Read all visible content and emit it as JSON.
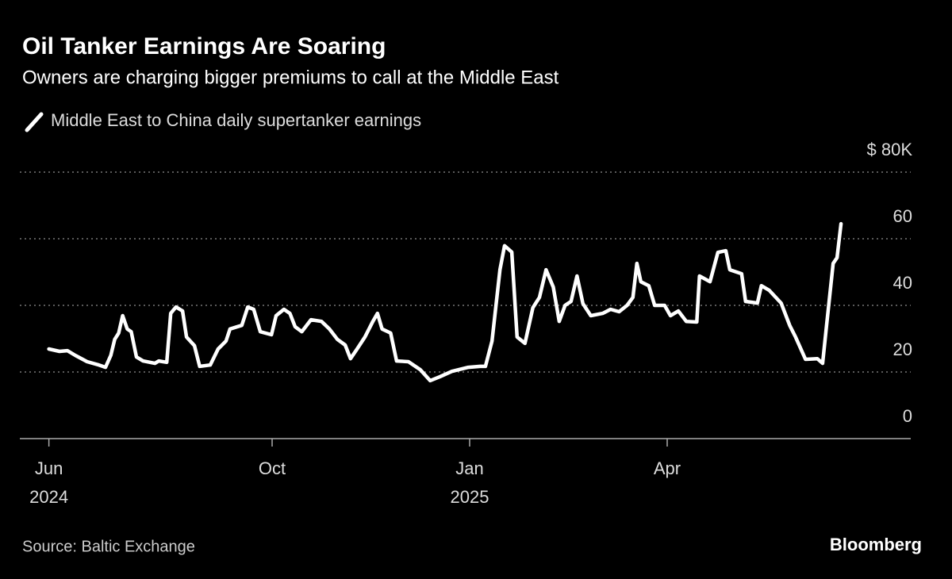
{
  "chart_data": {
    "type": "line",
    "title": "Oil Tanker Earnings Are Soaring",
    "subtitle": "Owners are charging bigger premiums to call at the Middle East",
    "source": "Source: Baltic Exchange",
    "brand": "Bloomberg",
    "x": [
      0.61,
      0.77,
      0.89,
      1.01,
      1.19,
      1.37,
      1.47,
      1.55,
      1.61,
      1.67,
      1.73,
      1.8,
      1.86,
      1.94,
      2.04,
      2.22,
      2.28,
      2.4,
      2.46,
      2.54,
      2.64,
      2.7,
      2.82,
      2.9,
      3.06,
      3.18,
      3.3,
      3.36,
      3.54,
      3.63,
      3.72,
      3.82,
      3.99,
      4.06,
      4.18,
      4.27,
      4.35,
      4.45,
      4.59,
      4.75,
      4.87,
      4.99,
      5.11,
      5.19,
      5.29,
      5.41,
      5.53,
      5.6,
      5.67,
      5.8,
      5.89,
      6.07,
      6.25,
      6.4,
      6.55,
      6.73,
      6.98,
      7.16,
      7.24,
      7.34,
      7.46,
      7.53,
      7.64,
      7.72,
      7.84,
      7.96,
      8.06,
      8.16,
      8.27,
      8.36,
      8.45,
      8.54,
      8.63,
      8.72,
      8.84,
      9.02,
      9.14,
      9.27,
      9.39,
      9.48,
      9.54,
      9.6,
      9.72,
      9.81,
      9.96,
      10.05,
      10.17,
      10.29,
      10.45,
      10.49,
      10.65,
      10.77,
      10.89,
      10.95,
      11.13,
      11.19,
      11.37,
      11.43,
      11.55,
      11.73,
      11.86,
      11.95,
      12.1,
      12.28,
      12.36,
      12.42,
      12.52,
      12.58,
      12.64
    ],
    "series": [
      {
        "name": "Middle East to China daily supertanker earnings",
        "color": "#ffffff",
        "values": [
          26.9,
          26.2,
          26.4,
          25.0,
          23.1,
          22.1,
          21.4,
          25.0,
          29.8,
          31.7,
          36.9,
          32.9,
          32.1,
          24.5,
          23.3,
          22.6,
          23.3,
          22.9,
          37.6,
          39.5,
          38.3,
          30.5,
          27.9,
          21.7,
          22.1,
          26.9,
          29.3,
          32.9,
          34.0,
          39.5,
          38.8,
          32.1,
          31.2,
          36.9,
          38.8,
          37.6,
          33.6,
          32.1,
          35.7,
          35.2,
          32.9,
          29.8,
          28.1,
          24.0,
          26.9,
          30.5,
          35.2,
          37.6,
          32.9,
          31.7,
          23.3,
          23.1,
          20.7,
          17.4,
          18.6,
          20.2,
          21.4,
          21.7,
          21.7,
          29.3,
          50.7,
          57.9,
          56.0,
          30.5,
          28.6,
          39.3,
          42.4,
          50.7,
          45.5,
          35.2,
          40.0,
          41.2,
          48.8,
          40.5,
          36.9,
          37.6,
          38.8,
          38.1,
          40.0,
          42.4,
          52.6,
          47.1,
          45.9,
          40.0,
          40.0,
          36.9,
          38.3,
          35.2,
          35.0,
          48.8,
          47.1,
          55.9,
          56.4,
          50.7,
          49.5,
          41.2,
          40.7,
          45.9,
          44.5,
          40.7,
          34.0,
          30.5,
          23.8,
          24.0,
          22.6,
          34.0,
          52.6,
          54.3,
          64.5
        ]
      }
    ],
    "xlim": [
      0,
      14
    ],
    "xticks": [
      {
        "value": 0.61,
        "label": "Jun"
      },
      {
        "value": 4,
        "label": "Oct"
      },
      {
        "value": 7,
        "label": "Jan"
      },
      {
        "value": 10,
        "label": "Apr"
      }
    ],
    "x_year_labels": [
      {
        "value": 0.61,
        "label": "2024"
      },
      {
        "value": 7,
        "label": "2025"
      }
    ],
    "ylim": [
      0,
      80
    ],
    "yticks": [
      0,
      20,
      40,
      60,
      {
        "value": 80,
        "label": "$ 80K"
      }
    ],
    "grid": true
  }
}
